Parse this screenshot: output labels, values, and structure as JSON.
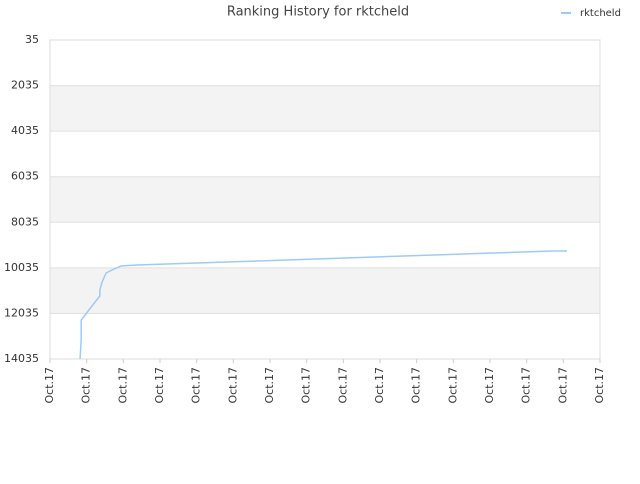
{
  "chart_data": {
    "type": "line",
    "title": "Ranking History for rktcheld",
    "series": [
      {
        "name": "rktcheld",
        "color": "#9ecbf2",
        "x": [
          0.82,
          0.85,
          0.85,
          1.04,
          1.23,
          1.36,
          1.36,
          1.42,
          1.53,
          1.69,
          1.94,
          2.37,
          3.19,
          4.01,
          4.83,
          5.65,
          6.46,
          7.25,
          8.05,
          8.86,
          9.65,
          10.47,
          11.26,
          12.08,
          12.9,
          13.69,
          14.1
        ],
        "values": [
          14035,
          13201,
          12323,
          11928,
          11534,
          11270,
          11007,
          10656,
          10261,
          10129,
          9953,
          9909,
          9866,
          9822,
          9778,
          9734,
          9690,
          9646,
          9602,
          9558,
          9514,
          9470,
          9426,
          9383,
          9339,
          9295,
          9295
        ]
      }
    ],
    "xlim": [
      0,
      15
    ],
    "xticks": [
      {
        "value": 0,
        "label": "Oct.17"
      },
      {
        "value": 1,
        "label": "Oct.17"
      },
      {
        "value": 2,
        "label": "Oct.17"
      },
      {
        "value": 3,
        "label": "Oct.17"
      },
      {
        "value": 4,
        "label": "Oct.17"
      },
      {
        "value": 5,
        "label": "Oct.17"
      },
      {
        "value": 6,
        "label": "Oct.17"
      },
      {
        "value": 7,
        "label": "Oct.17"
      },
      {
        "value": 8,
        "label": "Oct.17"
      },
      {
        "value": 9,
        "label": "Oct.17"
      },
      {
        "value": 10,
        "label": "Oct.17"
      },
      {
        "value": 11,
        "label": "Oct.17"
      },
      {
        "value": 12,
        "label": "Oct.17"
      },
      {
        "value": 13,
        "label": "Oct.17"
      },
      {
        "value": 14,
        "label": "Oct.17"
      },
      {
        "value": 15,
        "label": "Oct.17"
      }
    ],
    "ylim": [
      35,
      14035
    ],
    "y_inverted": true,
    "yticks": [
      35,
      2035,
      4035,
      6035,
      8035,
      10035,
      12035,
      14035
    ],
    "grid": true,
    "legend": "top-right"
  }
}
